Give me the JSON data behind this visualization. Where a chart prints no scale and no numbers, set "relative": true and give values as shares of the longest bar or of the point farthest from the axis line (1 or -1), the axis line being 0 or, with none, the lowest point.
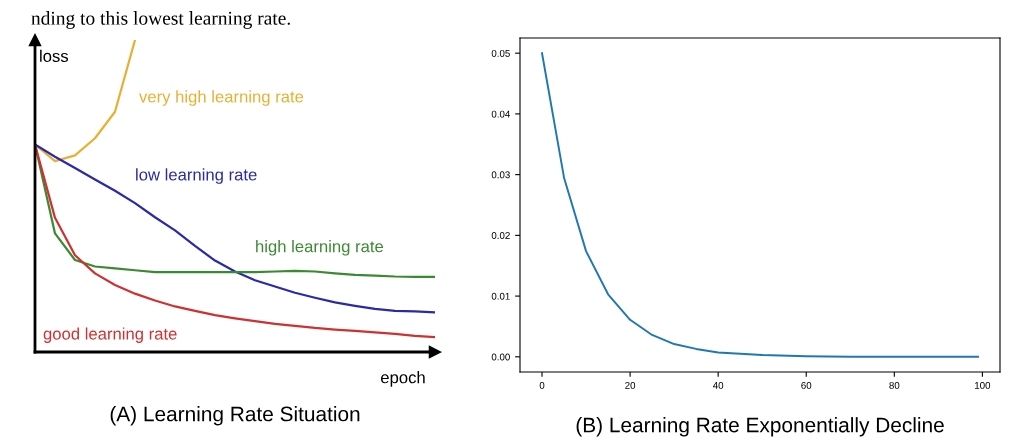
{
  "chart_data": [
    {
      "type": "line",
      "relative": true,
      "title": "(A) Learning Rate Situation",
      "xlabel": "epoch",
      "ylabel": "loss",
      "annotations": [
        "nding to this lowest learning rate."
      ],
      "categories": [
        null,
        null,
        null,
        null,
        null,
        null,
        null,
        null,
        null,
        null,
        null,
        null,
        null,
        null,
        null,
        null,
        null,
        null,
        null,
        null,
        null
      ],
      "series": [
        {
          "name": "very high learning rate",
          "color": "#e8b030",
          "values": [
            0.665,
            0.612,
            0.63,
            0.685,
            0.77,
            1.0,
            null,
            null,
            null,
            null,
            null,
            null,
            null,
            null,
            null,
            null,
            null,
            null,
            null,
            null,
            null
          ]
        },
        {
          "name": "low learning rate",
          "color": "#2a2aa8",
          "values": [
            0.665,
            0.626,
            0.59,
            0.553,
            0.517,
            0.477,
            0.432,
            0.39,
            0.34,
            0.293,
            0.258,
            0.23,
            0.21,
            0.19,
            0.174,
            0.159,
            0.148,
            0.138,
            0.132,
            0.13,
            0.127
          ]
        },
        {
          "name": "high learning rate",
          "color": "#3a8a30",
          "values": [
            0.665,
            0.38,
            0.295,
            0.274,
            0.268,
            0.262,
            0.256,
            0.256,
            0.256,
            0.256,
            0.256,
            0.256,
            0.258,
            0.26,
            0.258,
            0.252,
            0.247,
            0.245,
            0.242,
            0.241,
            0.241
          ]
        },
        {
          "name": "good learning rate",
          "color": "#d03030",
          "values": [
            0.665,
            0.43,
            0.31,
            0.252,
            0.215,
            0.187,
            0.165,
            0.146,
            0.132,
            0.118,
            0.108,
            0.099,
            0.09,
            0.084,
            0.077,
            0.072,
            0.068,
            0.063,
            0.058,
            0.052,
            0.048
          ]
        }
      ]
    },
    {
      "type": "line",
      "title": "(B) Learning Rate Exponentially Decline",
      "xlim": [
        -5,
        104
      ],
      "ylim": [
        -0.0025,
        0.0525
      ],
      "xticks": [
        0,
        20,
        40,
        60,
        80,
        100
      ],
      "yticks": [
        {
          "value": 0,
          "label": "0.00"
        },
        {
          "value": 0.01,
          "label": "0.01"
        },
        {
          "value": 0.02,
          "label": "0.02"
        },
        {
          "value": 0.03,
          "label": "0.03"
        },
        {
          "value": 0.04,
          "label": "0.04"
        },
        {
          "value": 0.05,
          "label": "0.05"
        }
      ],
      "series": [
        {
          "color": "#1f77b4",
          "x": [
            0,
            5,
            10,
            15,
            20,
            25,
            30,
            35,
            40,
            50,
            60,
            70,
            80,
            90,
            99
          ],
          "values": [
            0.05,
            0.0295,
            0.0174,
            0.0103,
            0.0061,
            0.0036,
            0.0021,
            0.0013,
            0.0007,
            0.0003,
            0.0001,
            0,
            0,
            0,
            0
          ]
        }
      ]
    }
  ]
}
